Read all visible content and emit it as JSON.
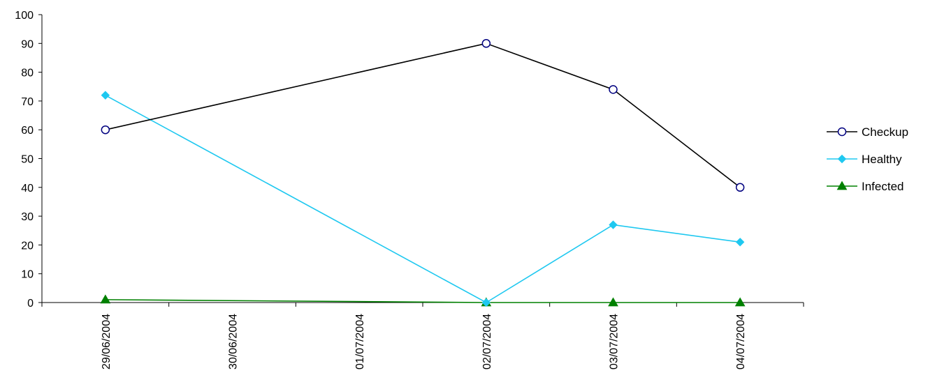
{
  "chart_data": {
    "type": "line",
    "title": "",
    "xlabel": "",
    "ylabel": "",
    "ylim": [
      0,
      100
    ],
    "yticks": [
      "0",
      "10",
      "20",
      "30",
      "40",
      "50",
      "60",
      "70",
      "80",
      "90",
      "100"
    ],
    "categories": [
      "29/06/2004",
      "30/06/2004",
      "01/07/2004",
      "02/07/2004",
      "03/07/2004",
      "04/07/2004"
    ],
    "grid": false,
    "legend_position": "right",
    "series": [
      {
        "name": "Checkup",
        "color": "#000000",
        "marker": "circle",
        "marker_color": "#000080",
        "points": [
          {
            "x": "29/06/2004",
            "y": 60
          },
          {
            "x": "02/07/2004",
            "y": 90
          },
          {
            "x": "03/07/2004",
            "y": 74
          },
          {
            "x": "04/07/2004",
            "y": 40
          }
        ]
      },
      {
        "name": "Healthy",
        "color": "#1EC8F0",
        "marker": "diamond",
        "marker_color": "#1EC8F0",
        "points": [
          {
            "x": "29/06/2004",
            "y": 72
          },
          {
            "x": "02/07/2004",
            "y": 0
          },
          {
            "x": "03/07/2004",
            "y": 27
          },
          {
            "x": "04/07/2004",
            "y": 21
          }
        ]
      },
      {
        "name": "Infected",
        "color": "#008000",
        "marker": "triangle",
        "marker_color": "#008000",
        "points": [
          {
            "x": "29/06/2004",
            "y": 1
          },
          {
            "x": "02/07/2004",
            "y": 0
          },
          {
            "x": "03/07/2004",
            "y": 0
          },
          {
            "x": "04/07/2004",
            "y": 0
          }
        ]
      }
    ]
  }
}
